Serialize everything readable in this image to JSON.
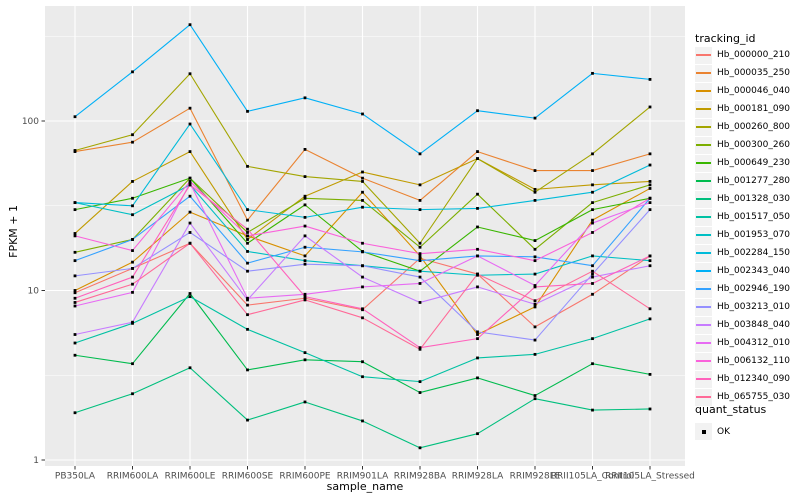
{
  "figure": {
    "background": "#FFFFFF",
    "panel_background": "#EBEBEB",
    "grid_color": "#FFFFFF",
    "axis_text_color": "#4D4D4D",
    "tick_color": "#333333",
    "point_color": "#000000",
    "legend_key_background": "#F2F2F2"
  },
  "chart_data": {
    "type": "line",
    "title": "",
    "xlabel": "sample_name",
    "ylabel": "FPKM + 1",
    "y_scale": "log10",
    "y_ticks": [
      1,
      10,
      100
    ],
    "y_minor_ticks_exp": [
      0.5,
      1.5,
      2.5
    ],
    "ylim": [
      0.93,
      480
    ],
    "grid": true,
    "legend_position": "right",
    "legend_title": "tracking_id",
    "quant_legend": {
      "title": "quant_status",
      "items": [
        "OK"
      ]
    },
    "categories": [
      "PB350LA",
      "RRIM600LA",
      "RRIM600LE",
      "RRIM600SE",
      "RRIM600PE",
      "RRIM901LA",
      "RRIM928BA",
      "RRIM928LA",
      "RRIM928LE",
      "RRII105LA_Control",
      "RRII105LA_Stressed"
    ],
    "series": [
      {
        "name": "Hb_000000_210",
        "color": "#F8766D",
        "values": [
          9.7,
          13.5,
          19,
          8.2,
          9,
          7.7,
          15.5,
          12.5,
          6.1,
          9.5,
          16
        ]
      },
      {
        "name": "Hb_000035_250",
        "color": "#EA8331",
        "values": [
          66,
          75,
          119,
          26,
          68,
          46,
          34,
          66,
          51,
          51,
          64
        ]
      },
      {
        "name": "Hb_000046_040",
        "color": "#D89000",
        "values": [
          10,
          14.7,
          29,
          21,
          16,
          38,
          16,
          5.5,
          8,
          26,
          40
        ]
      },
      {
        "name": "Hb_000181_090",
        "color": "#C09B00",
        "values": [
          21.7,
          44,
          66,
          20,
          36,
          50,
          42,
          60,
          39.5,
          42,
          44
        ]
      },
      {
        "name": "Hb_000260_800",
        "color": "#A3A500",
        "values": [
          67,
          83,
          190,
          54,
          47,
          44,
          19,
          60,
          38,
          64,
          121
        ]
      },
      {
        "name": "Hb_000300_260",
        "color": "#7CAE00",
        "values": [
          16.8,
          20,
          46,
          22,
          35,
          34,
          18,
          37,
          17.5,
          33,
          42
        ]
      },
      {
        "name": "Hb_000649_230",
        "color": "#39B600",
        "values": [
          30,
          35,
          46,
          19,
          32,
          17,
          13,
          23.7,
          19.7,
          30,
          35
        ]
      },
      {
        "name": "Hb_001277_280",
        "color": "#00BB4E",
        "values": [
          4.15,
          3.7,
          9.6,
          3.4,
          3.9,
          3.8,
          2.5,
          3.05,
          2.4,
          3.7,
          3.2
        ]
      },
      {
        "name": "Hb_001328_030",
        "color": "#00BF7D",
        "values": [
          1.9,
          2.46,
          3.5,
          1.72,
          2.2,
          1.7,
          1.18,
          1.43,
          2.3,
          1.97,
          2
        ]
      },
      {
        "name": "Hb_001517_050",
        "color": "#00C1A3",
        "values": [
          4.9,
          6.4,
          9.2,
          5.9,
          4.3,
          3.1,
          2.9,
          4,
          4.2,
          5.2,
          6.8
        ]
      },
      {
        "name": "Hb_001953_070",
        "color": "#00BFC4",
        "values": [
          33,
          28,
          42,
          17,
          15,
          14,
          13,
          12.3,
          12.5,
          16,
          15
        ]
      },
      {
        "name": "Hb_002284_150",
        "color": "#00BBDA",
        "values": [
          33,
          31.6,
          96,
          30,
          27,
          31,
          30,
          30.5,
          34,
          38,
          55
        ]
      },
      {
        "name": "Hb_002343_040",
        "color": "#00B0F6",
        "values": [
          106,
          195,
          370,
          114,
          137,
          110,
          64,
          115,
          104,
          191,
          176
        ]
      },
      {
        "name": "Hb_002946_190",
        "color": "#35A2FF",
        "values": [
          15,
          20,
          36,
          14.5,
          18,
          16.9,
          15,
          16,
          15.8,
          14,
          35
        ]
      },
      {
        "name": "Hb_003213_010",
        "color": "#9590FF",
        "values": [
          12.2,
          13.5,
          22,
          13,
          14.3,
          14,
          12,
          5.7,
          5.1,
          12.5,
          30
        ]
      },
      {
        "name": "Hb_003848_040",
        "color": "#C77CFF",
        "values": [
          5.5,
          6.5,
          25,
          8.8,
          21,
          12,
          8.5,
          10.5,
          8.3,
          12,
          14
        ]
      },
      {
        "name": "Hb_004312_010",
        "color": "#E76BF3",
        "values": [
          8.1,
          9.75,
          43,
          9,
          9.5,
          10.5,
          11,
          16,
          10.7,
          25,
          33
        ]
      },
      {
        "name": "Hb_006132_110",
        "color": "#FA62DB",
        "values": [
          21,
          17.2,
          44,
          21,
          24,
          19,
          16.5,
          17.5,
          15,
          22,
          35
        ]
      },
      {
        "name": "Hb_012340_090",
        "color": "#FF62BC",
        "values": [
          9,
          12,
          42,
          23,
          9.2,
          7.8,
          4.6,
          5.2,
          10.5,
          11,
          16
        ]
      },
      {
        "name": "Hb_065755_030",
        "color": "#FF6A98",
        "values": [
          8.5,
          10.9,
          19,
          7.2,
          8.8,
          6.9,
          4.5,
          12.5,
          8.7,
          13,
          7.8
        ]
      }
    ]
  }
}
